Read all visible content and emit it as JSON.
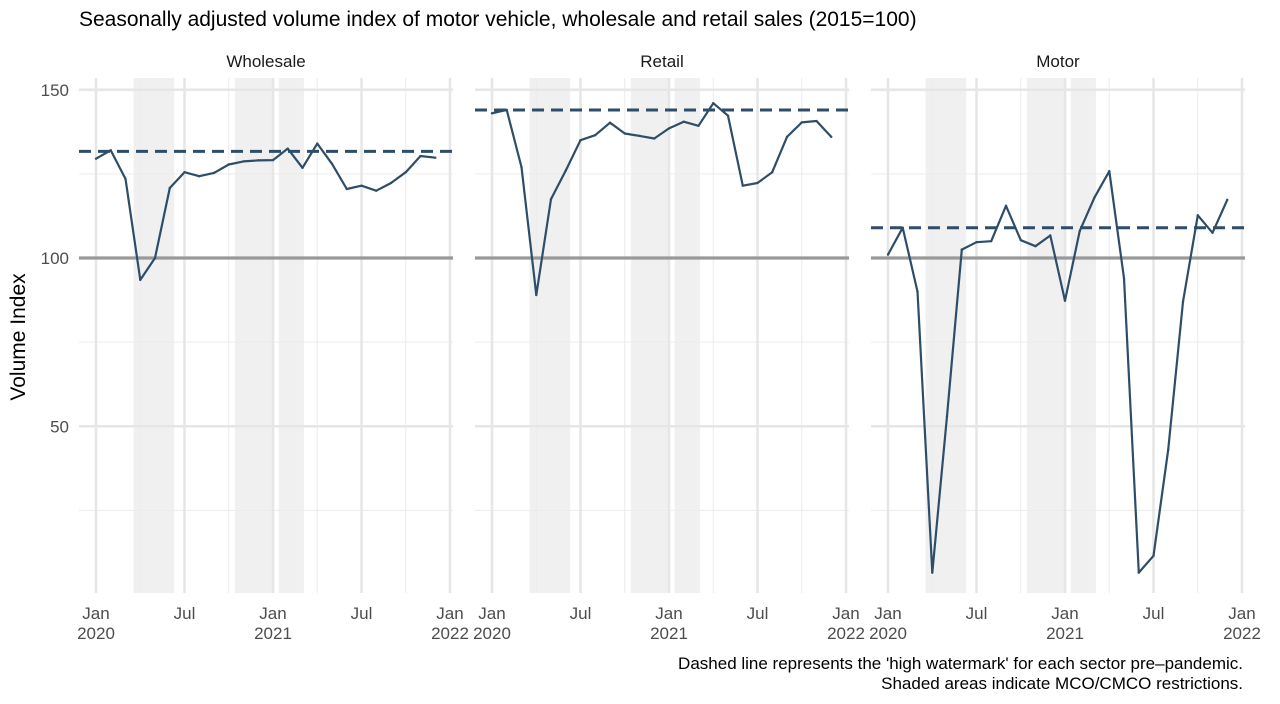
{
  "chart_data": {
    "type": "line",
    "title": "Seasonally adjusted volume index of motor vehicle, wholesale and retail sales (2015=100)",
    "ylabel": "Volume Index",
    "xlabel": "",
    "ylim": [
      0,
      152
    ],
    "y_ticks": [
      50,
      100,
      150
    ],
    "x_ticks": [
      {
        "date": "2020-01",
        "label": [
          "Jan",
          "2020"
        ]
      },
      {
        "date": "2020-07",
        "label": [
          "Jul"
        ]
      },
      {
        "date": "2021-01",
        "label": [
          "Jan",
          "2021"
        ]
      },
      {
        "date": "2021-07",
        "label": [
          "Jul"
        ]
      },
      {
        "date": "2022-01",
        "label": [
          "Jan",
          "2022"
        ]
      }
    ],
    "xlim": [
      "2020-01",
      "2022-01"
    ],
    "grid": true,
    "reference_line": 100,
    "line_color": "#2e4d69",
    "reference_color": "#999999",
    "shade_color": "#f0f0f0",
    "shaded_periods": [
      [
        "2020-03-18",
        "2020-06-10"
      ],
      [
        "2020-10-14",
        "2020-12-31"
      ],
      [
        "2021-01-13",
        "2021-03-04"
      ]
    ],
    "months": [
      "2020-01",
      "2020-02",
      "2020-03",
      "2020-04",
      "2020-05",
      "2020-06",
      "2020-07",
      "2020-08",
      "2020-09",
      "2020-10",
      "2020-11",
      "2020-12",
      "2021-01",
      "2021-02",
      "2021-03",
      "2021-04",
      "2021-05",
      "2021-06",
      "2021-07",
      "2021-08",
      "2021-09",
      "2021-10",
      "2021-11",
      "2021-12"
    ],
    "panels": [
      {
        "name": "Wholesale",
        "high_watermark": 131.7,
        "values": [
          129.5,
          132,
          123.5,
          93.5,
          100,
          120.8,
          125.5,
          124.3,
          125.3,
          127.8,
          128.7,
          129,
          129.1,
          132.5,
          126.8,
          134,
          128,
          120.5,
          121.5,
          120,
          122.3,
          125.5,
          130.3,
          129.8
        ]
      },
      {
        "name": "Retail",
        "high_watermark": 144,
        "values": [
          143,
          144,
          127,
          89,
          117.5,
          126,
          135,
          136.5,
          140.2,
          137,
          136.3,
          135.5,
          138.5,
          140.5,
          139.3,
          146,
          142.3,
          121.5,
          122.3,
          125.5,
          136,
          140.3,
          140.7,
          136
        ]
      },
      {
        "name": "Motor",
        "high_watermark": 109,
        "values": [
          101,
          109,
          90,
          6.5,
          53,
          102.5,
          104.7,
          105,
          115.5,
          105.3,
          103.5,
          106.7,
          87.3,
          108,
          118,
          125.8,
          94,
          6.5,
          11.5,
          43,
          87,
          112.7,
          107.5,
          117.3
        ]
      }
    ],
    "caption": [
      "Dashed line represents the 'high watermark' for each sector pre–pandemic.",
      "Shaded areas indicate MCO/CMCO restrictions."
    ]
  }
}
